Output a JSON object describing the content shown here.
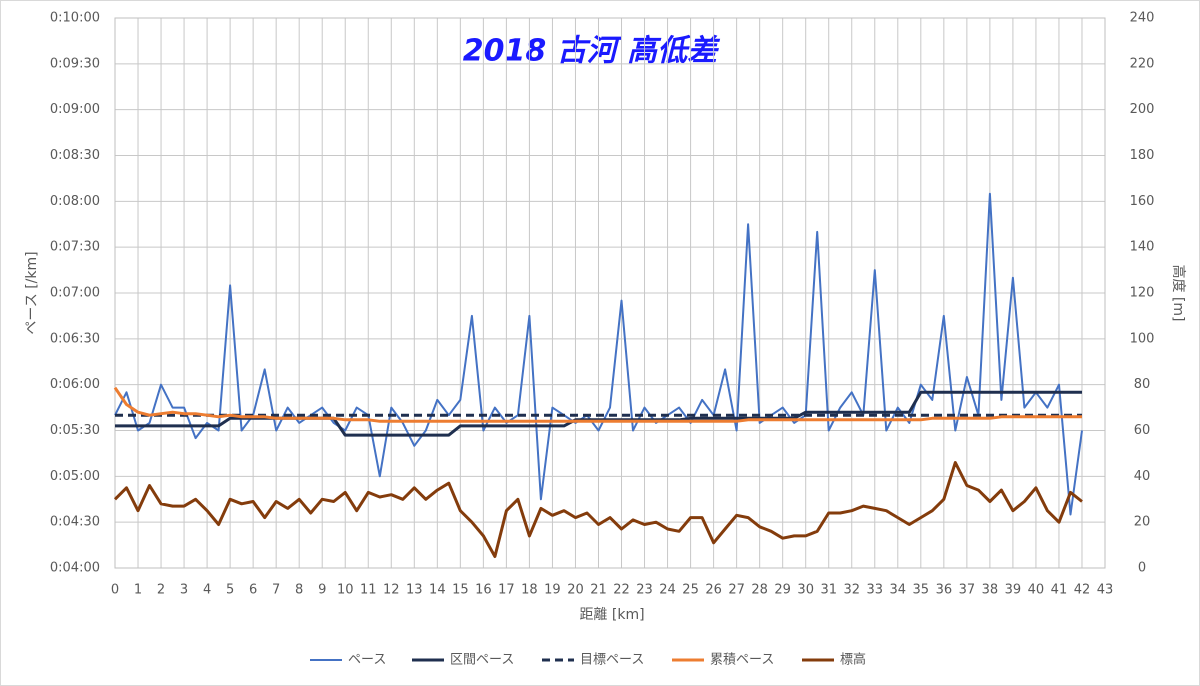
{
  "chart_data": {
    "type": "line",
    "title": "2018 古河 高低差",
    "x_label": "距離 [km]",
    "y_label": "ペース [/km]",
    "y2_label": "高度 [m]",
    "grid": true,
    "legend": "bottom",
    "xlim": [
      0,
      43
    ],
    "xticks": [
      0,
      1,
      2,
      3,
      4,
      5,
      6,
      7,
      8,
      9,
      10,
      11,
      12,
      13,
      14,
      15,
      16,
      17,
      18,
      19,
      20,
      21,
      22,
      23,
      24,
      25,
      26,
      27,
      28,
      29,
      30,
      31,
      32,
      33,
      34,
      35,
      36,
      37,
      38,
      39,
      40,
      41,
      42,
      43
    ],
    "ylim": [
      240,
      600
    ],
    "yticks": [
      {
        "value": 240,
        "label": "0:04:00"
      },
      {
        "value": 270,
        "label": "0:04:30"
      },
      {
        "value": 300,
        "label": "0:05:00"
      },
      {
        "value": 330,
        "label": "0:05:30"
      },
      {
        "value": 360,
        "label": "0:06:00"
      },
      {
        "value": 390,
        "label": "0:06:30"
      },
      {
        "value": 420,
        "label": "0:07:00"
      },
      {
        "value": 450,
        "label": "0:07:30"
      },
      {
        "value": 480,
        "label": "0:08:00"
      },
      {
        "value": 510,
        "label": "0:08:30"
      },
      {
        "value": 540,
        "label": "0:09:00"
      },
      {
        "value": 570,
        "label": "0:09:30"
      },
      {
        "value": 600,
        "label": "0:10:00"
      }
    ],
    "y2lim": [
      0,
      240
    ],
    "y2ticks": [
      0,
      20,
      40,
      60,
      80,
      100,
      120,
      140,
      160,
      180,
      200,
      220,
      240
    ],
    "x": [
      0,
      0.5,
      1,
      1.5,
      2,
      2.5,
      3,
      3.5,
      4,
      4.5,
      5,
      5.5,
      6,
      6.5,
      7,
      7.5,
      8,
      8.5,
      9,
      9.5,
      10,
      10.5,
      11,
      11.5,
      12,
      12.5,
      13,
      13.5,
      14,
      14.5,
      15,
      15.5,
      16,
      16.5,
      17,
      17.5,
      18,
      18.5,
      19,
      19.5,
      20,
      20.5,
      21,
      21.5,
      22,
      22.5,
      23,
      23.5,
      24,
      24.5,
      25,
      25.5,
      26,
      26.5,
      27,
      27.5,
      28,
      28.5,
      29,
      29.5,
      30,
      30.5,
      31,
      31.5,
      32,
      32.5,
      33,
      33.5,
      34,
      34.5,
      35,
      35.5,
      36,
      36.5,
      37,
      37.5,
      38,
      38.5,
      39,
      39.5,
      40,
      40.5,
      41,
      41.5,
      42
    ],
    "series": [
      {
        "name": "ペース",
        "color": "#4472c4",
        "width": 2,
        "values": [
          340,
          355,
          330,
          335,
          360,
          345,
          345,
          325,
          335,
          330,
          425,
          330,
          340,
          370,
          330,
          345,
          335,
          340,
          345,
          335,
          330,
          345,
          340,
          300,
          345,
          335,
          320,
          330,
          350,
          340,
          350,
          405,
          330,
          345,
          335,
          340,
          405,
          285,
          345,
          340,
          335,
          340,
          330,
          345,
          415,
          330,
          345,
          335,
          340,
          345,
          335,
          350,
          340,
          370,
          330,
          465,
          335,
          340,
          345,
          335,
          340,
          460,
          330,
          345,
          355,
          340,
          435,
          330,
          345,
          335,
          360,
          350,
          405,
          330,
          365,
          340,
          485,
          350,
          430,
          345,
          355,
          345,
          360,
          275,
          330
        ]
      },
      {
        "name": "区間ペース",
        "color": "#1f2f4f",
        "width": 3,
        "values": [
          333,
          333,
          333,
          333,
          333,
          333,
          333,
          333,
          333,
          333,
          338,
          338,
          338,
          338,
          338,
          338,
          338,
          338,
          338,
          338,
          327,
          327,
          327,
          327,
          327,
          327,
          327,
          327,
          327,
          327,
          333,
          333,
          333,
          333,
          333,
          333,
          333,
          333,
          333,
          333,
          337,
          337,
          337,
          337,
          337,
          337,
          337,
          337,
          337,
          337,
          338,
          338,
          338,
          338,
          338,
          338,
          338,
          338,
          338,
          338,
          342,
          342,
          342,
          342,
          342,
          342,
          342,
          342,
          342,
          342,
          355,
          355,
          355,
          355,
          355,
          355,
          355,
          355,
          355,
          355,
          355,
          355,
          355,
          355,
          355
        ]
      },
      {
        "name": "目標ペース",
        "color": "#1f2f4f",
        "width": 3,
        "dashed": true,
        "values": [
          340,
          340,
          340,
          340,
          340,
          340,
          340,
          340,
          340,
          340,
          340,
          340,
          340,
          340,
          340,
          340,
          340,
          340,
          340,
          340,
          340,
          340,
          340,
          340,
          340,
          340,
          340,
          340,
          340,
          340,
          340,
          340,
          340,
          340,
          340,
          340,
          340,
          340,
          340,
          340,
          340,
          340,
          340,
          340,
          340,
          340,
          340,
          340,
          340,
          340,
          340,
          340,
          340,
          340,
          340,
          340,
          340,
          340,
          340,
          340,
          340,
          340,
          340,
          340,
          340,
          340,
          340,
          340,
          340,
          340,
          340,
          340,
          340,
          340,
          340,
          340,
          340,
          340,
          340,
          340,
          340,
          340,
          340,
          340,
          340
        ]
      },
      {
        "name": "累積ペース",
        "color": "#ed7d31",
        "width": 3,
        "values": [
          358,
          347,
          342,
          340,
          341,
          342,
          341,
          341,
          340,
          339,
          340,
          339,
          339,
          339,
          338,
          338,
          338,
          338,
          338,
          338,
          337,
          337,
          337,
          336,
          336,
          336,
          336,
          336,
          336,
          336,
          336,
          336,
          336,
          336,
          336,
          336,
          336,
          336,
          336,
          336,
          336,
          336,
          336,
          336,
          336,
          336,
          336,
          336,
          336,
          336,
          336,
          336,
          336,
          336,
          336,
          337,
          337,
          337,
          337,
          337,
          337,
          337,
          337,
          337,
          337,
          337,
          337,
          337,
          337,
          337,
          337,
          338,
          338,
          338,
          338,
          338,
          338,
          339,
          339,
          339,
          339,
          339,
          339,
          339,
          339
        ]
      },
      {
        "name": "標高",
        "color": "#843c0c",
        "width": 3,
        "axis": "y2",
        "values": [
          30,
          35,
          25,
          36,
          28,
          27,
          27,
          30,
          25,
          19,
          30,
          28,
          29,
          22,
          29,
          26,
          30,
          24,
          30,
          29,
          33,
          25,
          33,
          31,
          32,
          30,
          35,
          30,
          34,
          37,
          25,
          20,
          14,
          5,
          25,
          30,
          14,
          26,
          23,
          25,
          22,
          24,
          19,
          22,
          17,
          21,
          19,
          20,
          17,
          16,
          22,
          22,
          11,
          17,
          23,
          22,
          18,
          16,
          13,
          14,
          14,
          16,
          24,
          24,
          25,
          27,
          26,
          25,
          22,
          19,
          22,
          25,
          30,
          46,
          36,
          34,
          29,
          34,
          25,
          29,
          35,
          25,
          20,
          33,
          29
        ]
      }
    ]
  }
}
